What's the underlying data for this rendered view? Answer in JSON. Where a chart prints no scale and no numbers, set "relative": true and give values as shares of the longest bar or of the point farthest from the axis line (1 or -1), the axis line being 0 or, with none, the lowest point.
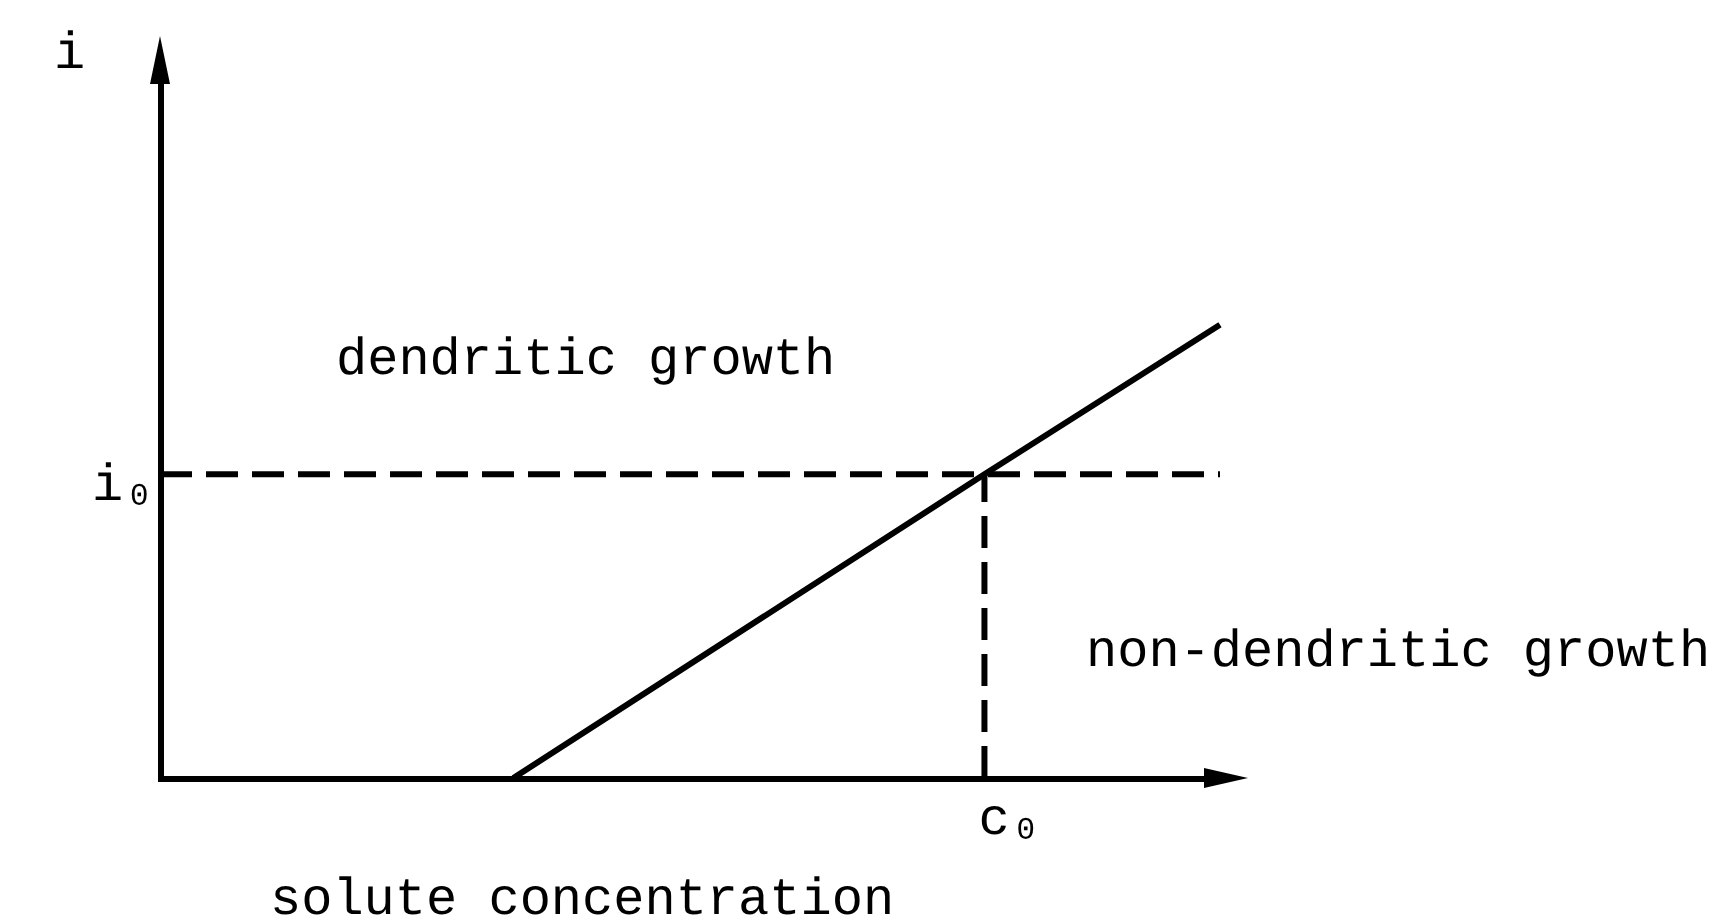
{
  "chart_data": {
    "type": "line",
    "xlabel": "solute concentration",
    "ylabel": "i",
    "annotations": [
      "dendritic growth",
      "non-dendritic growth"
    ],
    "categories": [
      null,
      null,
      null,
      null,
      null,
      null,
      null,
      null,
      null,
      null
    ],
    "relative": true,
    "marker": "none",
    "series": [
      {
        "color": "#000000",
        "values": [
          null,
          null,
          null,
          0,
          null,
          null,
          null,
          0.67,
          null,
          1
        ]
      }
    ],
    "ref_lines": [
      {
        "axis": "y",
        "value": 0.67,
        "label": "i₀",
        "color": "#000000",
        "line_style": "dashed"
      },
      {
        "axis": "x",
        "value": "c₀",
        "color": "#000000",
        "line_style": "dashed"
      }
    ]
  }
}
